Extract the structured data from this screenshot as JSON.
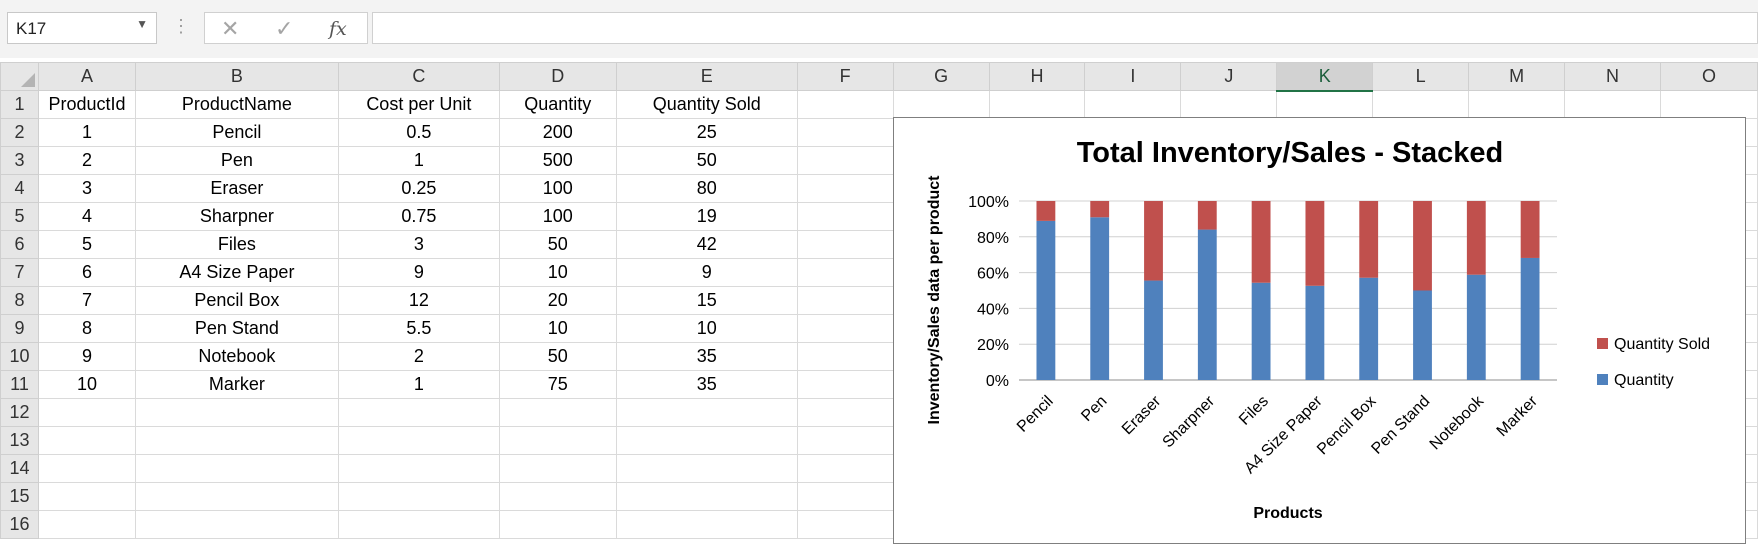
{
  "formula_bar": {
    "name_box": "K17",
    "dots": "⋮",
    "cancel_icon": "✕",
    "enter_icon": "✓",
    "function_icon": "fx",
    "formula": ""
  },
  "sheet": {
    "columns": [
      "A",
      "B",
      "C",
      "D",
      "E",
      "F",
      "G",
      "H",
      "I",
      "J",
      "K",
      "L",
      "M",
      "N",
      "O"
    ],
    "selected_column": "K",
    "rows": [
      [
        "ProductId",
        "ProductName",
        "Cost per Unit",
        "Quantity",
        "Quantity Sold"
      ],
      [
        "1",
        "Pencil",
        "0.5",
        "200",
        "25"
      ],
      [
        "2",
        "Pen",
        "1",
        "500",
        "50"
      ],
      [
        "3",
        "Eraser",
        "0.25",
        "100",
        "80"
      ],
      [
        "4",
        "Sharpner",
        "0.75",
        "100",
        "19"
      ],
      [
        "5",
        "Files",
        "3",
        "50",
        "42"
      ],
      [
        "6",
        "A4 Size Paper",
        "9",
        "10",
        "9"
      ],
      [
        "7",
        "Pencil Box",
        "12",
        "20",
        "15"
      ],
      [
        "8",
        "Pen Stand",
        "5.5",
        "10",
        "10"
      ],
      [
        "9",
        "Notebook",
        "2",
        "50",
        "35"
      ],
      [
        "10",
        "Marker",
        "1",
        "75",
        "35"
      ],
      [
        "",
        "",
        "",
        "",
        ""
      ],
      [
        "",
        "",
        "",
        "",
        ""
      ],
      [
        "",
        "",
        "",
        "",
        ""
      ],
      [
        "",
        "",
        "",
        "",
        ""
      ],
      [
        "",
        "",
        "",
        "",
        ""
      ]
    ]
  },
  "chart_data": {
    "type": "bar",
    "stacked": "100%",
    "title": "Total Inventory/Sales - Stacked",
    "xlabel": "Products",
    "ylabel": "Inventory/Sales data per product",
    "categories": [
      "Pencil",
      "Pen",
      "Eraser",
      "Sharpner",
      "Files",
      "A4 Size Paper",
      "Pencil Box",
      "Pen Stand",
      "Notebook",
      "Marker"
    ],
    "series": [
      {
        "name": "Quantity",
        "values": [
          200,
          500,
          100,
          100,
          50,
          10,
          20,
          10,
          50,
          75
        ],
        "color": "#4f81bd"
      },
      {
        "name": "Quantity Sold",
        "values": [
          25,
          50,
          80,
          19,
          42,
          9,
          15,
          10,
          35,
          35
        ],
        "color": "#c0504d"
      }
    ],
    "yticks": [
      "0%",
      "20%",
      "40%",
      "60%",
      "80%",
      "100%"
    ],
    "ylim": [
      0,
      100
    ],
    "grid": true,
    "legend": "right"
  }
}
